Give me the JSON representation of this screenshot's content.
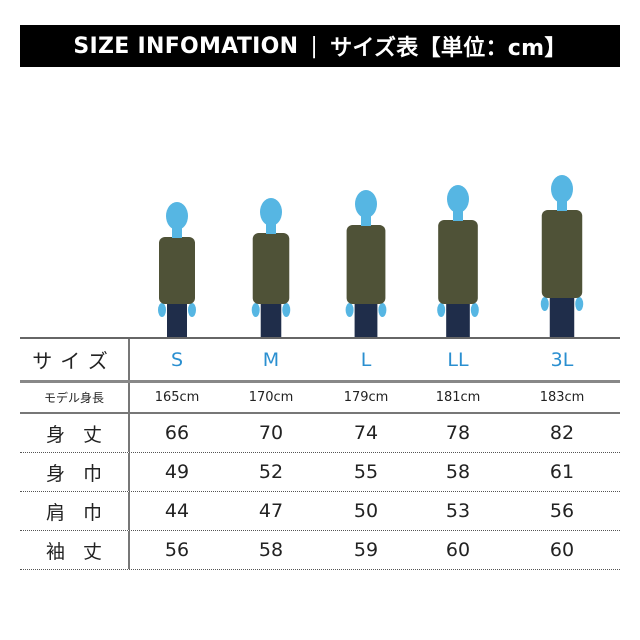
{
  "banner": {
    "title": "SIZE INFOMATION",
    "separator": "|",
    "subtitle": "サイズ表【単位：cm】"
  },
  "colors": {
    "banner_bg": "#000000",
    "size_label": "#2a8fd0",
    "silhouette": "#56b6e3",
    "shirt": "#4f5237",
    "jeans": "#1f2d4a"
  },
  "table": {
    "size_row": {
      "label": "サイズ",
      "values": [
        "S",
        "M",
        "L",
        "LL",
        "3L"
      ]
    },
    "model_row": {
      "label": "モデル身長",
      "values": [
        "165cm",
        "170cm",
        "179cm",
        "181cm",
        "183cm"
      ]
    },
    "rows": [
      {
        "label": "身丈",
        "values": [
          "66",
          "70",
          "74",
          "78",
          "82"
        ]
      },
      {
        "label": "身巾",
        "values": [
          "49",
          "52",
          "55",
          "58",
          "61"
        ]
      },
      {
        "label": "肩巾",
        "values": [
          "44",
          "47",
          "50",
          "53",
          "56"
        ]
      },
      {
        "label": "袖丈",
        "values": [
          "56",
          "58",
          "59",
          "60",
          "60"
        ]
      }
    ]
  }
}
